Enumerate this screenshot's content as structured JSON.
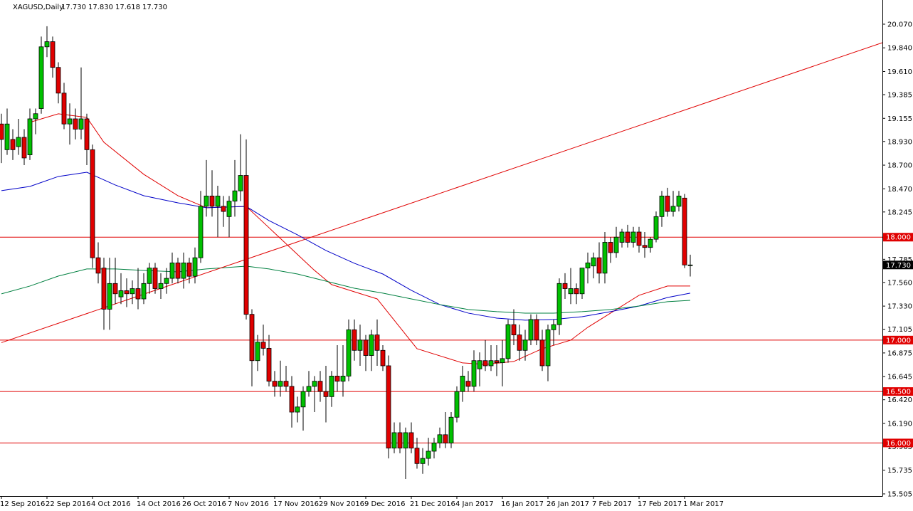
{
  "chart_data": {
    "type": "candlestick",
    "title": "XAGUSD,Daily",
    "header_values": [
      "17.730",
      "17.830",
      "17.618",
      "17.730"
    ],
    "up_color": "#00c000",
    "down_color": "#e00000",
    "categories": [
      "12 Sep 2016",
      null,
      null,
      null,
      null,
      null,
      null,
      null,
      "22 Sep 2016",
      null,
      null,
      null,
      null,
      null,
      null,
      null,
      "4 Oct 2016",
      null,
      null,
      null,
      null,
      null,
      null,
      null,
      "14 Oct 2016",
      null,
      null,
      null,
      null,
      null,
      null,
      null,
      "26 Oct 2016",
      null,
      null,
      null,
      null,
      null,
      null,
      null,
      "7 Nov 2016",
      null,
      null,
      null,
      null,
      null,
      null,
      null,
      "17 Nov 2016",
      null,
      null,
      null,
      null,
      null,
      null,
      null,
      "29 Nov 2016",
      null,
      null,
      null,
      null,
      null,
      null,
      null,
      "9 Dec 2016",
      null,
      null,
      null,
      null,
      null,
      null,
      null,
      "21 Dec 2016",
      null,
      null,
      null,
      null,
      null,
      null,
      null,
      "4 Jan 2017",
      null,
      null,
      null,
      null,
      null,
      null,
      null,
      "16 Jan 2017",
      null,
      null,
      null,
      null,
      null,
      null,
      null,
      "26 Jan 2017",
      null,
      null,
      null,
      null,
      null,
      null,
      null,
      "7 Feb 2017",
      null,
      null,
      null,
      null,
      null,
      null,
      null,
      "17 Feb 2017",
      null,
      null,
      null,
      null,
      null,
      null,
      null,
      "1 Mar 2017",
      null
    ],
    "open": [
      19.1,
      18.85,
      18.95,
      18.88,
      18.97,
      18.8,
      19.15,
      19.25,
      19.85,
      19.9,
      19.65,
      19.4,
      19.1,
      19.15,
      19.05,
      19.15,
      18.85,
      17.8,
      17.7,
      17.3,
      17.55,
      17.42,
      17.48,
      17.45,
      17.5,
      17.4,
      17.55,
      17.7,
      17.5,
      17.55,
      17.6,
      17.75,
      17.6,
      17.75,
      17.62,
      17.8,
      18.3,
      18.4,
      18.3,
      18.3,
      18.2,
      18.35,
      18.45,
      18.6,
      17.25,
      16.8,
      16.98,
      16.92,
      16.6,
      16.55,
      16.6,
      16.55,
      16.3,
      16.35,
      16.5,
      16.55,
      16.6,
      16.5,
      16.45,
      16.65,
      16.6,
      16.65,
      17.1,
      16.9,
      17.0,
      16.85,
      17.05,
      16.9,
      16.75,
      15.95,
      16.1,
      15.95,
      16.1,
      15.95,
      15.8,
      15.85,
      15.92,
      16.0,
      16.08,
      16.0,
      16.25,
      16.5,
      16.6,
      16.55,
      16.72,
      16.8,
      16.75,
      16.8,
      16.78,
      16.82,
      17.15,
      17.05,
      16.9,
      17.0,
      17.2,
      17.0,
      16.75,
      17.1,
      17.15,
      17.55,
      17.45,
      17.5,
      17.45,
      17.7,
      17.72,
      17.8,
      17.65,
      17.95,
      17.85,
      17.95,
      18.05,
      17.95,
      18.05,
      17.92,
      17.9,
      17.98,
      18.2,
      18.4,
      18.25,
      18.3,
      18.38,
      17.73
    ],
    "high": [
      19.2,
      19.25,
      19.05,
      19.15,
      19.05,
      19.25,
      19.25,
      19.95,
      20.05,
      19.95,
      19.7,
      19.5,
      19.3,
      19.25,
      19.65,
      19.2,
      18.9,
      17.95,
      17.8,
      17.8,
      17.8,
      17.65,
      17.6,
      17.58,
      17.7,
      17.65,
      17.75,
      17.75,
      17.65,
      17.7,
      17.85,
      17.8,
      17.85,
      17.8,
      17.9,
      18.45,
      18.75,
      18.65,
      18.5,
      18.4,
      18.4,
      18.75,
      19.0,
      18.95,
      17.3,
      17.05,
      17.15,
      17.05,
      16.7,
      16.8,
      16.75,
      16.65,
      16.45,
      16.55,
      16.7,
      16.65,
      16.7,
      16.75,
      16.7,
      16.95,
      16.95,
      17.2,
      17.2,
      17.15,
      17.05,
      17.1,
      17.2,
      16.95,
      16.85,
      16.2,
      16.2,
      16.15,
      16.2,
      16.05,
      15.95,
      16.05,
      16.05,
      16.15,
      16.3,
      16.3,
      16.55,
      16.75,
      16.7,
      16.9,
      16.88,
      17.0,
      16.95,
      16.95,
      17.0,
      17.2,
      17.3,
      17.15,
      17.1,
      17.25,
      17.25,
      17.1,
      17.15,
      17.2,
      17.6,
      17.65,
      17.7,
      17.55,
      17.7,
      17.85,
      17.85,
      17.95,
      18.05,
      18.0,
      18.1,
      18.08,
      18.12,
      18.1,
      18.1,
      18.05,
      18.0,
      18.25,
      18.45,
      18.48,
      18.45,
      18.45,
      18.42,
      17.83
    ],
    "low": [
      18.72,
      18.8,
      18.75,
      18.8,
      18.7,
      18.75,
      19.0,
      19.2,
      19.75,
      19.55,
      19.3,
      19.05,
      18.9,
      18.95,
      18.95,
      18.7,
      17.7,
      17.55,
      17.1,
      17.1,
      17.35,
      17.35,
      17.32,
      17.35,
      17.3,
      17.35,
      17.45,
      17.45,
      17.4,
      17.45,
      17.55,
      17.55,
      17.5,
      17.55,
      17.55,
      17.75,
      18.2,
      18.2,
      18.0,
      18.1,
      18.0,
      18.2,
      18.35,
      17.2,
      16.55,
      16.7,
      16.85,
      16.55,
      16.45,
      16.45,
      16.5,
      16.15,
      16.2,
      16.12,
      16.45,
      16.3,
      16.4,
      16.2,
      16.35,
      16.5,
      16.45,
      16.6,
      16.8,
      16.75,
      16.7,
      16.7,
      16.75,
      16.7,
      15.85,
      15.9,
      15.9,
      15.65,
      15.9,
      15.75,
      15.7,
      15.78,
      15.85,
      15.95,
      15.95,
      15.95,
      16.2,
      16.4,
      16.5,
      16.5,
      16.55,
      16.7,
      16.7,
      16.65,
      16.55,
      16.78,
      16.95,
      16.8,
      16.8,
      16.95,
      16.95,
      16.7,
      16.6,
      16.95,
      17.05,
      17.4,
      17.35,
      17.35,
      17.4,
      17.55,
      17.6,
      17.55,
      17.55,
      17.75,
      17.8,
      17.9,
      17.9,
      17.9,
      17.85,
      17.8,
      17.85,
      17.95,
      18.1,
      18.2,
      18.2,
      18.25,
      17.7,
      17.618
    ],
    "close": [
      18.95,
      19.1,
      18.85,
      18.97,
      18.77,
      19.15,
      19.2,
      19.85,
      19.9,
      19.65,
      19.4,
      19.1,
      19.15,
      19.05,
      19.15,
      18.85,
      17.8,
      17.65,
      17.3,
      17.55,
      17.45,
      17.48,
      17.45,
      17.5,
      17.4,
      17.55,
      17.7,
      17.5,
      17.55,
      17.6,
      17.75,
      17.6,
      17.75,
      17.62,
      17.8,
      18.3,
      18.4,
      18.3,
      18.4,
      18.25,
      18.35,
      18.45,
      18.6,
      17.25,
      16.8,
      16.98,
      16.92,
      16.6,
      16.55,
      16.6,
      16.55,
      16.3,
      16.35,
      16.5,
      16.55,
      16.6,
      16.5,
      16.45,
      16.65,
      16.6,
      16.65,
      17.1,
      16.9,
      17.0,
      16.85,
      17.05,
      16.9,
      16.75,
      15.95,
      16.1,
      15.95,
      16.1,
      15.95,
      15.8,
      15.85,
      15.92,
      16.0,
      16.08,
      16.0,
      16.25,
      16.5,
      16.65,
      16.55,
      16.8,
      16.8,
      16.75,
      16.8,
      16.78,
      16.82,
      17.15,
      17.05,
      16.9,
      17.0,
      17.2,
      17.0,
      16.75,
      17.1,
      17.15,
      17.55,
      17.5,
      17.5,
      17.45,
      17.7,
      17.75,
      17.8,
      17.65,
      17.95,
      17.85,
      18.0,
      18.05,
      17.95,
      18.05,
      17.92,
      17.9,
      17.98,
      18.2,
      18.4,
      18.25,
      18.3,
      18.4,
      17.73,
      17.73
    ],
    "lines": [
      {
        "color": "#e00000",
        "x": [
          5,
          10,
          15,
          18,
          25,
          31,
          36,
          43,
          47,
          51,
          55,
          58,
          62,
          66,
          70,
          73,
          77,
          81,
          85,
          90,
          95,
          100,
          103,
          107,
          112,
          117,
          121
        ],
        "values": [
          19.116,
          19.199,
          19.164,
          18.922,
          18.611,
          18.403,
          18.286,
          18.299,
          18.092,
          17.884,
          17.677,
          17.539,
          17.469,
          17.4,
          17.124,
          16.916,
          16.847,
          16.778,
          16.764,
          16.792,
          16.916,
          16.999,
          17.124,
          17.262,
          17.435,
          17.525,
          17.525
        ]
      },
      {
        "color": "#0000c8",
        "x": [
          0,
          5,
          10,
          15,
          20,
          25,
          31,
          36,
          43,
          47,
          52,
          57,
          62,
          67,
          72,
          77,
          82,
          87,
          92,
          97,
          102,
          107,
          112,
          117,
          121
        ],
        "values": [
          18.452,
          18.493,
          18.59,
          18.631,
          18.507,
          18.403,
          18.334,
          18.286,
          18.299,
          18.161,
          18.023,
          17.871,
          17.746,
          17.642,
          17.483,
          17.345,
          17.262,
          17.213,
          17.193,
          17.2,
          17.227,
          17.276,
          17.331,
          17.414,
          17.456
        ]
      },
      {
        "color": "#008040",
        "x": [
          0,
          5,
          10,
          15,
          20,
          25,
          31,
          36,
          43,
          47,
          52,
          57,
          62,
          67,
          72,
          77,
          82,
          87,
          92,
          97,
          102,
          107,
          112,
          117,
          121
        ],
        "values": [
          17.449,
          17.525,
          17.622,
          17.691,
          17.691,
          17.677,
          17.663,
          17.691,
          17.718,
          17.691,
          17.642,
          17.573,
          17.504,
          17.456,
          17.4,
          17.345,
          17.297,
          17.276,
          17.262,
          17.262,
          17.276,
          17.297,
          17.331,
          17.373,
          17.386
        ]
      },
      {
        "color": "#e00000",
        "x": [
          0,
          154.75
        ],
        "values": [
          16.975,
          19.89
        ]
      }
    ],
    "price_lines": [
      {
        "value": 18,
        "label": "18.000"
      },
      {
        "value": 17,
        "label": "17.000"
      },
      {
        "value": 16.5,
        "label": "16.500"
      },
      {
        "value": 16,
        "label": "16.000"
      }
    ],
    "price_line_color": "#e00000",
    "current_price": {
      "value": 17.73,
      "label": "17.730"
    },
    "xlim": [
      -0.25,
      154.75
    ],
    "ylim": [
      15.484,
      20.305
    ],
    "yticks": [
      {
        "value": 20.07,
        "label": "20.070"
      },
      {
        "value": 19.84,
        "label": "19.840"
      },
      {
        "value": 19.61,
        "label": "19.610"
      },
      {
        "value": 19.385,
        "label": "19.385"
      },
      {
        "value": 19.155,
        "label": "19.155"
      },
      {
        "value": 18.93,
        "label": "18.930"
      },
      {
        "value": 18.7,
        "label": "18.700"
      },
      {
        "value": 18.47,
        "label": "18.470"
      },
      {
        "value": 18.245,
        "label": "18.245"
      },
      {
        "value": 17.785,
        "label": "17.785"
      },
      {
        "value": 17.56,
        "label": "17.560"
      },
      {
        "value": 17.33,
        "label": "17.330"
      },
      {
        "value": 17.105,
        "label": "17.105"
      },
      {
        "value": 16.875,
        "label": "16.875"
      },
      {
        "value": 16.645,
        "label": "16.645"
      },
      {
        "value": 16.42,
        "label": "16.420"
      },
      {
        "value": 16.19,
        "label": "16.190"
      },
      {
        "value": 15.965,
        "label": "15.965"
      },
      {
        "value": 15.735,
        "label": "15.735"
      },
      {
        "value": 15.505,
        "label": "15.505"
      }
    ]
  }
}
